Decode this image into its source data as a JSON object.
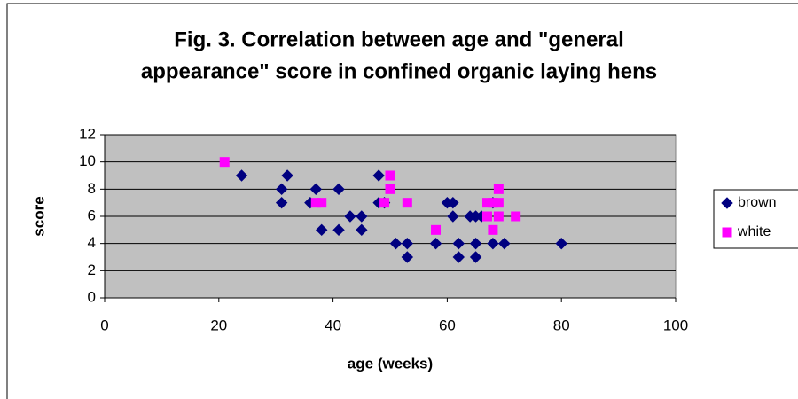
{
  "chart_data": {
    "type": "scatter",
    "title": [
      "Fig. 3. Correlation between age and \"general",
      "appearance\" score in confined organic laying hens"
    ],
    "x_label": "age (weeks)",
    "y_label": "score",
    "xlim": [
      0,
      100
    ],
    "xticks": [
      0,
      20,
      40,
      60,
      80,
      100
    ],
    "ylim": [
      0,
      12
    ],
    "yticks": [
      0,
      2,
      4,
      6,
      8,
      10,
      12
    ],
    "grid": true,
    "legend": "right",
    "series": [
      {
        "name": "brown",
        "color": "#000080",
        "marker": "diamond",
        "x": [
          24,
          31,
          31,
          32,
          37,
          36,
          38,
          41,
          41,
          43,
          45,
          45,
          48,
          48,
          49,
          51,
          53,
          53,
          58,
          60,
          61,
          61,
          62,
          62,
          64,
          65,
          65,
          65,
          66,
          68,
          68,
          70,
          80
        ],
        "values": [
          9,
          8,
          7,
          9,
          8,
          7,
          5,
          8,
          5,
          6,
          6,
          5,
          9,
          7,
          7,
          4,
          4,
          3,
          4,
          7,
          7,
          6,
          4,
          3,
          6,
          6,
          4,
          3,
          6,
          7,
          4,
          4,
          4
        ]
      },
      {
        "name": "white",
        "color": "#ff00ff",
        "marker": "square",
        "x": [
          21,
          37,
          38,
          49,
          50,
          50,
          53,
          58,
          67,
          67,
          68,
          68,
          69,
          69,
          69,
          72
        ],
        "values": [
          10,
          7,
          7,
          7,
          9,
          8,
          7,
          5,
          7,
          6,
          7,
          5,
          8,
          7,
          6,
          6
        ]
      }
    ]
  }
}
